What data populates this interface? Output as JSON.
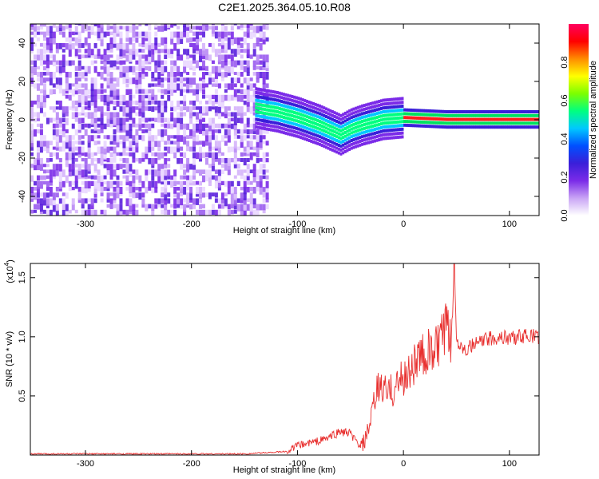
{
  "title": "C2E1.2025.364.05.10.R08",
  "chart_data": [
    {
      "type": "heatmap",
      "xlabel": "Height of straight line (km)",
      "ylabel": "Frequency (Hz)",
      "xlim": [
        -352,
        128
      ],
      "ylim": [
        -50,
        50
      ],
      "xticks": [
        "-300",
        "-200",
        "-100",
        "0",
        "100"
      ],
      "yticks": [
        "40",
        "20",
        "0",
        "-20",
        "-40"
      ],
      "colorbar": {
        "label": "Normalized spectral amplitude",
        "range": [
          0,
          1
        ],
        "ticks": [
          "0.0",
          "0.2",
          "0.4",
          "0.6",
          "0.8"
        ],
        "colors": [
          "#ffffff",
          "#c9a4f5",
          "#7b2be8",
          "#3a1fd9",
          "#0050ff",
          "#00c8ff",
          "#00ff80",
          "#7cff00",
          "#ffff00",
          "#ff8c00",
          "#ff0000",
          "#ff0060"
        ]
      },
      "ridge_frequency": {
        "height_km": [
          -140,
          -120,
          -100,
          -80,
          -60,
          -50,
          -40,
          -20,
          0,
          40,
          128
        ],
        "frequency_hz": [
          6,
          4,
          1,
          -3,
          -8,
          -5,
          -3,
          0,
          1,
          0,
          0
        ]
      },
      "noise_region_km": [
        -352,
        -130
      ]
    },
    {
      "type": "line",
      "xlabel": "Height of straight line (km)",
      "ylabel": "SNR (10 * v/v)",
      "yscale_label": "(x10",
      "yscale_exp": "4",
      "xlim": [
        -352,
        128
      ],
      "ylim": [
        0,
        1.62
      ],
      "xticks": [
        "-300",
        "-200",
        "-100",
        "0",
        "100"
      ],
      "yticks": [
        "0.5",
        "1.0",
        "1.5"
      ],
      "series": [
        {
          "color": "#e8302f",
          "x": [
            -352,
            -300,
            -250,
            -200,
            -150,
            -110,
            -100,
            -90,
            -80,
            -70,
            -60,
            -50,
            -45,
            -40,
            -35,
            -30,
            -25,
            -20,
            -15,
            -10,
            -5,
            0,
            5,
            10,
            20,
            30,
            40,
            45,
            48,
            50,
            55,
            60,
            70,
            80,
            90,
            100,
            110,
            120,
            128
          ],
          "y": [
            0.01,
            0.01,
            0.01,
            0.01,
            0.01,
            0.03,
            0.08,
            0.1,
            0.12,
            0.15,
            0.2,
            0.18,
            0.12,
            0.06,
            0.15,
            0.32,
            0.55,
            0.58,
            0.52,
            0.55,
            0.62,
            0.65,
            0.7,
            0.78,
            0.85,
            0.88,
            1.05,
            0.95,
            1.6,
            0.98,
            0.92,
            0.9,
            0.95,
            0.98,
            1.0,
            0.99,
            1.0,
            1.01,
            1.0
          ]
        }
      ]
    }
  ]
}
